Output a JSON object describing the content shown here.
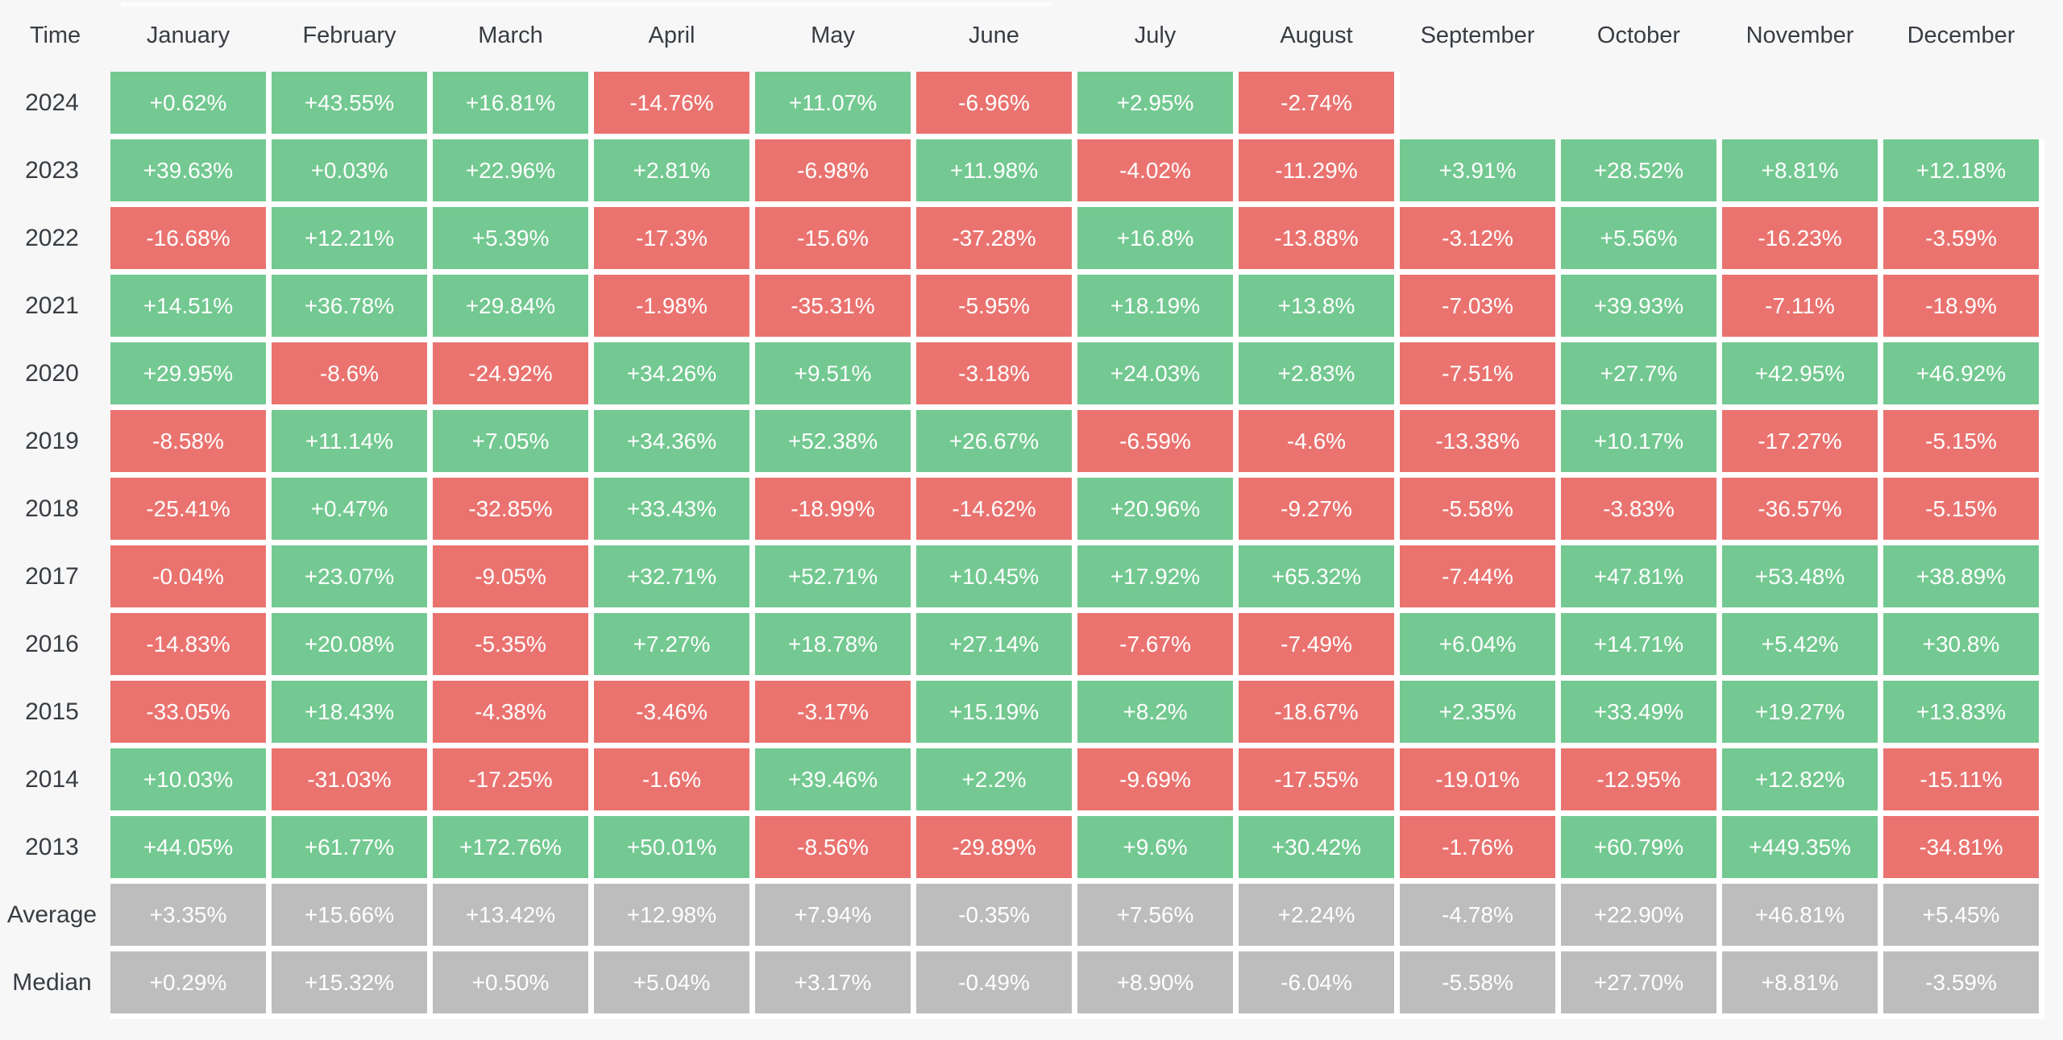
{
  "colors": {
    "positive": "#73c991",
    "negative": "#ea7370",
    "summary": "#bdbdbd",
    "page_background": "#f7f7f8",
    "gap": "#ffffff",
    "header_text": "#383d42",
    "cell_text": "#ffffff"
  },
  "chart_data": {
    "type": "heatmap",
    "row_header_label": "Time",
    "columns": [
      "January",
      "February",
      "March",
      "April",
      "May",
      "June",
      "July",
      "August",
      "September",
      "October",
      "November",
      "December"
    ],
    "value_unit": "%",
    "rows": [
      {
        "label": "2024",
        "kind": "year",
        "values": [
          "+0.62%",
          "+43.55%",
          "+16.81%",
          "-14.76%",
          "+11.07%",
          "-6.96%",
          "+2.95%",
          "-2.74%",
          null,
          null,
          null,
          null
        ]
      },
      {
        "label": "2023",
        "kind": "year",
        "values": [
          "+39.63%",
          "+0.03%",
          "+22.96%",
          "+2.81%",
          "-6.98%",
          "+11.98%",
          "-4.02%",
          "-11.29%",
          "+3.91%",
          "+28.52%",
          "+8.81%",
          "+12.18%"
        ]
      },
      {
        "label": "2022",
        "kind": "year",
        "values": [
          "-16.68%",
          "+12.21%",
          "+5.39%",
          "-17.3%",
          "-15.6%",
          "-37.28%",
          "+16.8%",
          "-13.88%",
          "-3.12%",
          "+5.56%",
          "-16.23%",
          "-3.59%"
        ]
      },
      {
        "label": "2021",
        "kind": "year",
        "values": [
          "+14.51%",
          "+36.78%",
          "+29.84%",
          "-1.98%",
          "-35.31%",
          "-5.95%",
          "+18.19%",
          "+13.8%",
          "-7.03%",
          "+39.93%",
          "-7.11%",
          "-18.9%"
        ]
      },
      {
        "label": "2020",
        "kind": "year",
        "values": [
          "+29.95%",
          "-8.6%",
          "-24.92%",
          "+34.26%",
          "+9.51%",
          "-3.18%",
          "+24.03%",
          "+2.83%",
          "-7.51%",
          "+27.7%",
          "+42.95%",
          "+46.92%"
        ]
      },
      {
        "label": "2019",
        "kind": "year",
        "values": [
          "-8.58%",
          "+11.14%",
          "+7.05%",
          "+34.36%",
          "+52.38%",
          "+26.67%",
          "-6.59%",
          "-4.6%",
          "-13.38%",
          "+10.17%",
          "-17.27%",
          "-5.15%"
        ]
      },
      {
        "label": "2018",
        "kind": "year",
        "values": [
          "-25.41%",
          "+0.47%",
          "-32.85%",
          "+33.43%",
          "-18.99%",
          "-14.62%",
          "+20.96%",
          "-9.27%",
          "-5.58%",
          "-3.83%",
          "-36.57%",
          "-5.15%"
        ]
      },
      {
        "label": "2017",
        "kind": "year",
        "values": [
          "-0.04%",
          "+23.07%",
          "-9.05%",
          "+32.71%",
          "+52.71%",
          "+10.45%",
          "+17.92%",
          "+65.32%",
          "-7.44%",
          "+47.81%",
          "+53.48%",
          "+38.89%"
        ]
      },
      {
        "label": "2016",
        "kind": "year",
        "values": [
          "-14.83%",
          "+20.08%",
          "-5.35%",
          "+7.27%",
          "+18.78%",
          "+27.14%",
          "-7.67%",
          "-7.49%",
          "+6.04%",
          "+14.71%",
          "+5.42%",
          "+30.8%"
        ]
      },
      {
        "label": "2015",
        "kind": "year",
        "values": [
          "-33.05%",
          "+18.43%",
          "-4.38%",
          "-3.46%",
          "-3.17%",
          "+15.19%",
          "+8.2%",
          "-18.67%",
          "+2.35%",
          "+33.49%",
          "+19.27%",
          "+13.83%"
        ]
      },
      {
        "label": "2014",
        "kind": "year",
        "values": [
          "+10.03%",
          "-31.03%",
          "-17.25%",
          "-1.6%",
          "+39.46%",
          "+2.2%",
          "-9.69%",
          "-17.55%",
          "-19.01%",
          "-12.95%",
          "+12.82%",
          "-15.11%"
        ]
      },
      {
        "label": "2013",
        "kind": "year",
        "values": [
          "+44.05%",
          "+61.77%",
          "+172.76%",
          "+50.01%",
          "-8.56%",
          "-29.89%",
          "+9.6%",
          "+30.42%",
          "-1.76%",
          "+60.79%",
          "+449.35%",
          "-34.81%"
        ]
      },
      {
        "label": "Average",
        "kind": "summary",
        "values": [
          "+3.35%",
          "+15.66%",
          "+13.42%",
          "+12.98%",
          "+7.94%",
          "-0.35%",
          "+7.56%",
          "+2.24%",
          "-4.78%",
          "+22.90%",
          "+46.81%",
          "+5.45%"
        ]
      },
      {
        "label": "Median",
        "kind": "summary",
        "values": [
          "+0.29%",
          "+15.32%",
          "+0.50%",
          "+5.04%",
          "+3.17%",
          "-0.49%",
          "+8.90%",
          "-6.04%",
          "-5.58%",
          "+27.70%",
          "+8.81%",
          "-3.59%"
        ]
      }
    ]
  }
}
